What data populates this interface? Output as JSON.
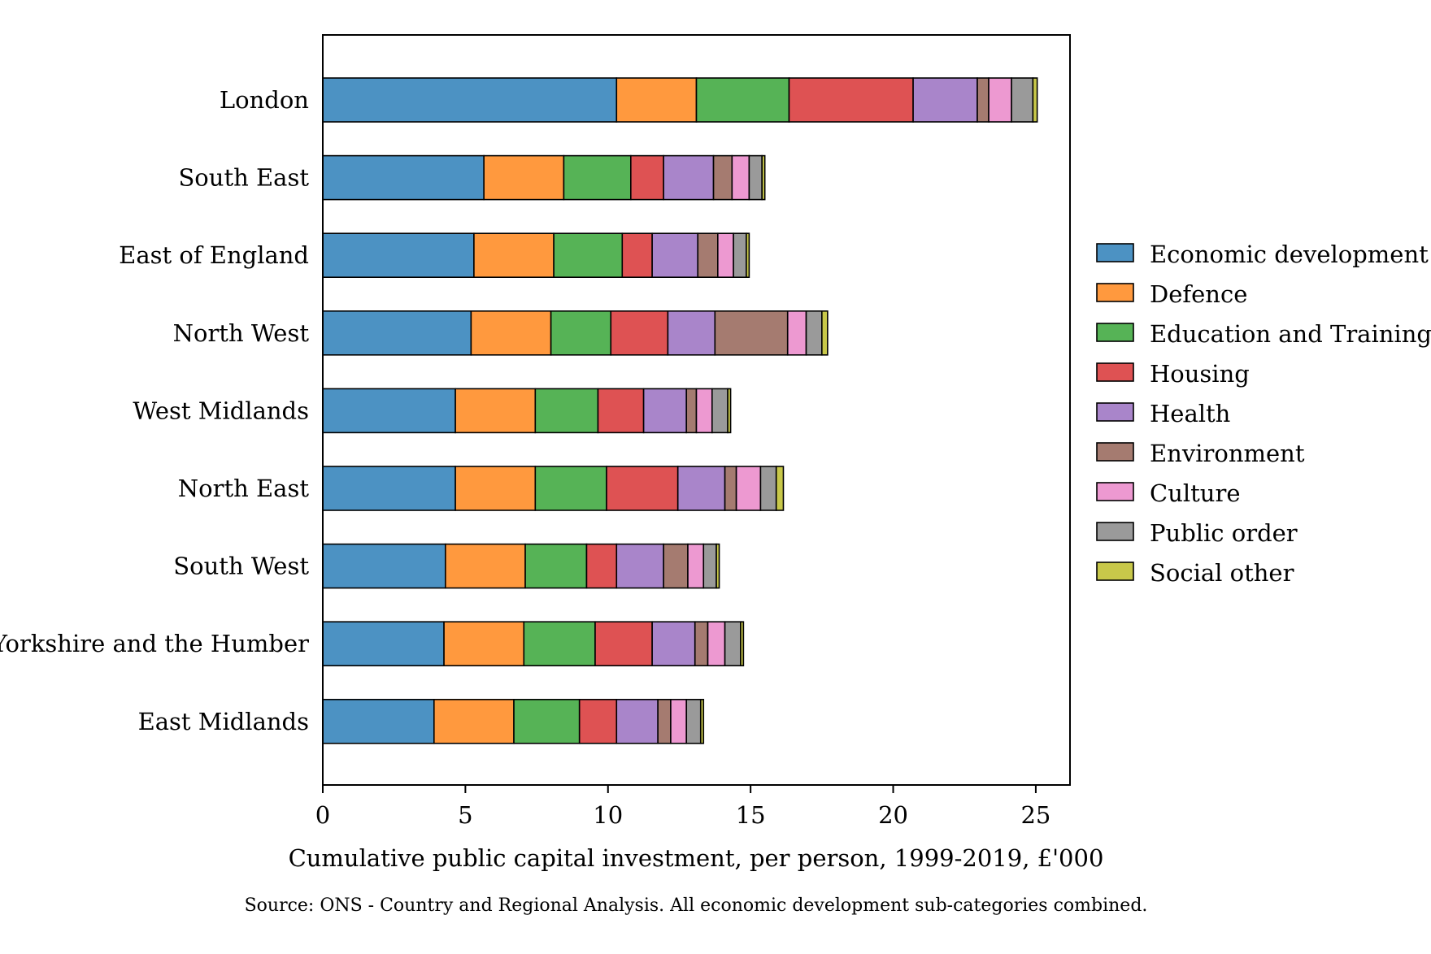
{
  "chart_data": {
    "type": "bar",
    "orientation": "horizontal",
    "stacked": true,
    "title": "",
    "xlabel": "Cumulative public capital investment, per person, 1999-2019, £'000",
    "ylabel": "",
    "xlim": [
      0,
      26.2
    ],
    "xticks": [
      0,
      5,
      10,
      15,
      20,
      25
    ],
    "grid": false,
    "legend_position": "right",
    "source_note": "Source: ONS - Country and Regional Analysis. All economic development sub-categories combined.",
    "categories": [
      "London",
      "South East",
      "East of England",
      "North West",
      "West Midlands",
      "North East",
      "South West",
      "Yorkshire and the Humber",
      "East Midlands"
    ],
    "series": [
      {
        "name": "Economic development",
        "color": "#4c92c3",
        "values": [
          10.3,
          5.65,
          5.3,
          5.2,
          4.65,
          4.65,
          4.3,
          4.25,
          3.9
        ]
      },
      {
        "name": "Defence",
        "color": "#ff993e",
        "values": [
          2.8,
          2.8,
          2.8,
          2.8,
          2.8,
          2.8,
          2.8,
          2.8,
          2.8
        ]
      },
      {
        "name": "Education and Training",
        "color": "#56b356",
        "values": [
          3.25,
          2.35,
          2.4,
          2.1,
          2.2,
          2.5,
          2.15,
          2.5,
          2.3
        ]
      },
      {
        "name": "Housing",
        "color": "#de5253",
        "values": [
          4.35,
          1.15,
          1.05,
          2.0,
          1.6,
          2.5,
          1.05,
          2.0,
          1.3
        ]
      },
      {
        "name": "Health",
        "color": "#a985ca",
        "values": [
          2.25,
          1.75,
          1.6,
          1.65,
          1.5,
          1.65,
          1.65,
          1.5,
          1.45
        ]
      },
      {
        "name": "Environment",
        "color": "#a57b70",
        "values": [
          0.4,
          0.65,
          0.7,
          2.55,
          0.35,
          0.4,
          0.85,
          0.45,
          0.45
        ]
      },
      {
        "name": "Culture",
        "color": "#ed99d1",
        "values": [
          0.8,
          0.6,
          0.55,
          0.65,
          0.55,
          0.85,
          0.55,
          0.6,
          0.55
        ]
      },
      {
        "name": "Public order",
        "color": "#9a9a9a",
        "values": [
          0.75,
          0.45,
          0.45,
          0.55,
          0.55,
          0.55,
          0.45,
          0.55,
          0.5
        ]
      },
      {
        "name": "Social other",
        "color": "#c8c84a",
        "values": [
          0.15,
          0.1,
          0.1,
          0.2,
          0.1,
          0.25,
          0.1,
          0.1,
          0.1
        ]
      }
    ]
  }
}
